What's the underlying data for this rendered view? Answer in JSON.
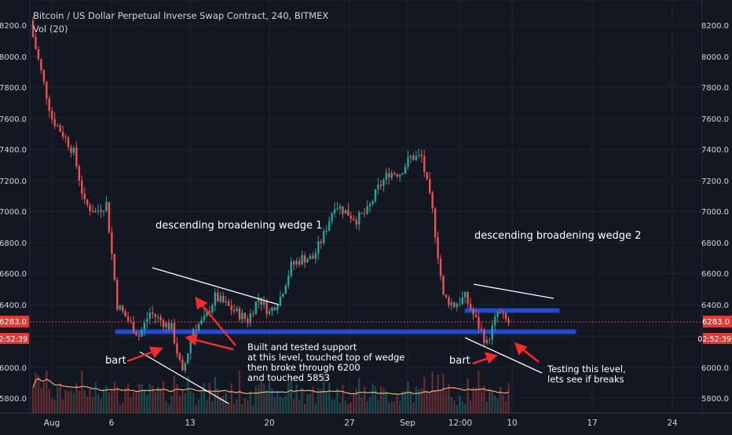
{
  "header": {
    "title": "Bitcoin / US Dollar Perpetual Inverse Swap Contract, 240, BITMEX",
    "volume_label": "Vol (20)"
  },
  "colors": {
    "background": "#131722",
    "up": "#26a69a",
    "down": "#ef5350",
    "text": "#d1d4dc",
    "price_line": "#e53935",
    "support_band": "#2962ff",
    "volume_ma": "#f5a97f"
  },
  "price_axis": {
    "ticks": [
      "8200.0",
      "8000.0",
      "7800.0",
      "7600.0",
      "7400.0",
      "7200.0",
      "7000.0",
      "6800.0",
      "6600.0",
      "6400.0",
      "6200.0",
      "6000.0",
      "5800.0"
    ],
    "current_price": "6283.0",
    "countdown": "02:52:39"
  },
  "time_axis": {
    "ticks": [
      "Aug",
      "6",
      "13",
      "20",
      "27",
      "Sep",
      "12:00",
      "10",
      "17",
      "24"
    ]
  },
  "annotations": {
    "wedge1_label": "descending broadening wedge 1",
    "wedge2_label": "descending broadening wedge 2",
    "bart1": "bart",
    "bart2": "bart",
    "support_note": [
      "Built and tested support",
      "at this level, touched top of wedge",
      "then broke through 6200",
      "and touched 5853"
    ],
    "testing_note": [
      "Testing this level,",
      "lets see if breaks"
    ]
  },
  "chart_data": {
    "type": "candlestick",
    "symbol": "Bitcoin / US Dollar Perpetual Inverse Swap Contract",
    "interval": "240",
    "exchange": "BITMEX",
    "ylim": [
      5760,
      8260
    ],
    "current_price": 6283.0,
    "support_level": 6220,
    "resistance_level": 6360,
    "waypoints": [
      {
        "x": "Jul 31",
        "y": 8200
      },
      {
        "x": "Aug 1",
        "y": 7900
      },
      {
        "x": "Aug 2",
        "y": 7600
      },
      {
        "x": "Aug 3",
        "y": 7500
      },
      {
        "x": "Aug 4",
        "y": 7380
      },
      {
        "x": "Aug 5",
        "y": 7050
      },
      {
        "x": "Aug 6",
        "y": 7000
      },
      {
        "x": "Aug 7",
        "y": 7050
      },
      {
        "x": "Aug 8",
        "y": 6400
      },
      {
        "x": "Aug 9",
        "y": 6300
      },
      {
        "x": "Aug 10",
        "y": 6200
      },
      {
        "x": "Aug 11",
        "y": 6350
      },
      {
        "x": "Aug 12",
        "y": 6300
      },
      {
        "x": "Aug 13",
        "y": 6250
      },
      {
        "x": "Aug 14",
        "y": 5950
      },
      {
        "x": "Aug 15",
        "y": 6250
      },
      {
        "x": "Aug 16",
        "y": 6300
      },
      {
        "x": "Aug 17",
        "y": 6450
      },
      {
        "x": "Aug 18",
        "y": 6400
      },
      {
        "x": "Aug 19",
        "y": 6350
      },
      {
        "x": "Aug 20",
        "y": 6300
      },
      {
        "x": "Aug 21",
        "y": 6450
      },
      {
        "x": "Aug 22",
        "y": 6350
      },
      {
        "x": "Aug 23",
        "y": 6450
      },
      {
        "x": "Aug 24",
        "y": 6650
      },
      {
        "x": "Aug 25",
        "y": 6700
      },
      {
        "x": "Aug 26",
        "y": 6700
      },
      {
        "x": "Aug 27",
        "y": 6850
      },
      {
        "x": "Aug 28",
        "y": 7050
      },
      {
        "x": "Aug 29",
        "y": 7000
      },
      {
        "x": "Aug 30",
        "y": 6950
      },
      {
        "x": "Aug 31",
        "y": 7000
      },
      {
        "x": "Sep 1",
        "y": 7150
      },
      {
        "x": "Sep 2",
        "y": 7250
      },
      {
        "x": "Sep 3",
        "y": 7250
      },
      {
        "x": "Sep 4",
        "y": 7350
      },
      {
        "x": "Sep 5",
        "y": 7350
      },
      {
        "x": "Sep 5 12:00",
        "y": 7000
      },
      {
        "x": "Sep 6",
        "y": 6450
      },
      {
        "x": "Sep 7",
        "y": 6400
      },
      {
        "x": "Sep 8",
        "y": 6450
      },
      {
        "x": "Sep 8 12:00",
        "y": 6300
      },
      {
        "x": "Sep 9",
        "y": 6150
      },
      {
        "x": "Sep 9 12:00",
        "y": 6350
      },
      {
        "x": "Sep 10",
        "y": 6283
      }
    ]
  }
}
